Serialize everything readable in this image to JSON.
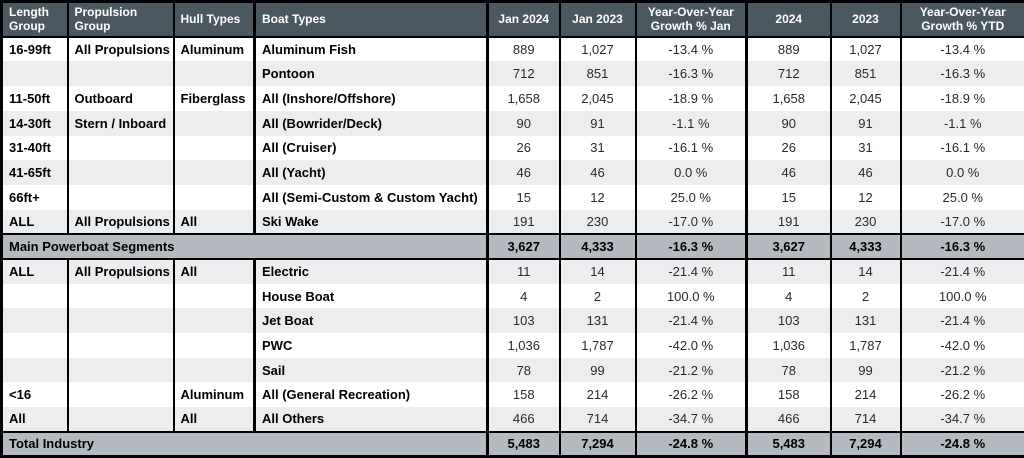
{
  "colors": {
    "header_bg": "#4b5860",
    "header_text": "#ffffff",
    "summary_row_bg": "#b4bac0",
    "stripe_gray": "#ebedee",
    "border": "#000000",
    "body_text": "#2a2a2a"
  },
  "header": {
    "cells": [
      {
        "label": "Length\nGroup",
        "align": "left"
      },
      {
        "label": "Propulsion\nGroup",
        "align": "left"
      },
      {
        "label": "Hull Types",
        "align": "left"
      },
      {
        "label": "Boat Types",
        "align": "left"
      },
      {
        "label": "Jan 2024",
        "align": "center"
      },
      {
        "label": "Jan 2023",
        "align": "center"
      },
      {
        "label": "Year-Over-Year\nGrowth % Jan",
        "align": "center"
      },
      {
        "label": "2024",
        "align": "center"
      },
      {
        "label": "2023",
        "align": "center"
      },
      {
        "label": "Year-Over-Year\nGrowth % YTD",
        "align": "center"
      }
    ]
  },
  "rows": [
    {
      "type": "data",
      "shade": "white",
      "cells": [
        "16-99ft",
        "All Propulsions",
        "Aluminum",
        "Aluminum Fish",
        "889",
        "1,027",
        "-13.4 %",
        "889",
        "1,027",
        "-13.4 %"
      ]
    },
    {
      "type": "data",
      "shade": "gray",
      "cells": [
        "",
        "",
        "",
        "Pontoon",
        "712",
        "851",
        "-16.3 %",
        "712",
        "851",
        "-16.3 %"
      ]
    },
    {
      "type": "data",
      "shade": "white",
      "cells": [
        "11-50ft",
        "Outboard",
        "Fiberglass",
        "All (Inshore/Offshore)",
        "1,658",
        "2,045",
        "-18.9 %",
        "1,658",
        "2,045",
        "-18.9 %"
      ]
    },
    {
      "type": "data",
      "shade": "gray",
      "cells": [
        "14-30ft",
        "Stern / Inboard",
        "",
        "All (Bowrider/Deck)",
        "90",
        "91",
        "-1.1 %",
        "90",
        "91",
        "-1.1 %"
      ]
    },
    {
      "type": "data",
      "shade": "white",
      "cells": [
        "31-40ft",
        "",
        "",
        "All (Cruiser)",
        "26",
        "31",
        "-16.1 %",
        "26",
        "31",
        "-16.1 %"
      ]
    },
    {
      "type": "data",
      "shade": "gray",
      "cells": [
        "41-65ft",
        "",
        "",
        "All (Yacht)",
        "46",
        "46",
        "0.0 %",
        "46",
        "46",
        "0.0 %"
      ]
    },
    {
      "type": "data",
      "shade": "white",
      "cells": [
        "66ft+",
        "",
        "",
        "All (Semi-Custom & Custom Yacht)",
        "15",
        "12",
        "25.0 %",
        "15",
        "12",
        "25.0 %"
      ]
    },
    {
      "type": "data",
      "shade": "gray",
      "cells": [
        "ALL",
        "All Propulsions",
        "All",
        "Ski Wake",
        "191",
        "230",
        "-17.0 %",
        "191",
        "230",
        "-17.0 %"
      ]
    },
    {
      "type": "summary",
      "cells": [
        "Main Powerboat Segments",
        "3,627",
        "4,333",
        "-16.3 %",
        "3,627",
        "4,333",
        "-16.3 %"
      ]
    },
    {
      "type": "data",
      "shade": "gray",
      "cells": [
        "ALL",
        "All Propulsions",
        "All",
        "Electric",
        "11",
        "14",
        "-21.4 %",
        "11",
        "14",
        "-21.4 %"
      ]
    },
    {
      "type": "data",
      "shade": "white",
      "cells": [
        "",
        "",
        "",
        "House Boat",
        "4",
        "2",
        "100.0 %",
        "4",
        "2",
        "100.0 %"
      ]
    },
    {
      "type": "data",
      "shade": "gray",
      "cells": [
        "",
        "",
        "",
        "Jet Boat",
        "103",
        "131",
        "-21.4 %",
        "103",
        "131",
        "-21.4 %"
      ]
    },
    {
      "type": "data",
      "shade": "white",
      "cells": [
        "",
        "",
        "",
        "PWC",
        "1,036",
        "1,787",
        "-42.0 %",
        "1,036",
        "1,787",
        "-42.0 %"
      ]
    },
    {
      "type": "data",
      "shade": "gray",
      "cells": [
        "",
        "",
        "",
        "Sail",
        "78",
        "99",
        "-21.2 %",
        "78",
        "99",
        "-21.2 %"
      ]
    },
    {
      "type": "data",
      "shade": "white",
      "cells": [
        "<16",
        "",
        "Aluminum",
        "All (General Recreation)",
        "158",
        "214",
        "-26.2 %",
        "158",
        "214",
        "-26.2 %"
      ]
    },
    {
      "type": "data",
      "shade": "gray",
      "cells": [
        "All",
        "",
        "All",
        "All Others",
        "466",
        "714",
        "-34.7 %",
        "466",
        "714",
        "-34.7 %"
      ]
    },
    {
      "type": "summary",
      "cells": [
        "Total Industry",
        "5,483",
        "7,294",
        "-24.8 %",
        "5,483",
        "7,294",
        "-24.8 %"
      ]
    }
  ],
  "chart_data": {
    "type": "table",
    "columns": [
      "Length Group",
      "Propulsion Group",
      "Hull Types",
      "Boat Types",
      "Jan 2024",
      "Jan 2023",
      "Year-Over-Year Growth % Jan",
      "2024",
      "2023",
      "Year-Over-Year Growth % YTD"
    ],
    "rows": [
      [
        "16-99ft",
        "All Propulsions",
        "Aluminum",
        "Aluminum Fish",
        889,
        1027,
        -13.4,
        889,
        1027,
        -13.4
      ],
      [
        "",
        "",
        "",
        "Pontoon",
        712,
        851,
        -16.3,
        712,
        851,
        -16.3
      ],
      [
        "11-50ft",
        "Outboard",
        "Fiberglass",
        "All (Inshore/Offshore)",
        1658,
        2045,
        -18.9,
        1658,
        2045,
        -18.9
      ],
      [
        "14-30ft",
        "Stern / Inboard",
        "",
        "All (Bowrider/Deck)",
        90,
        91,
        -1.1,
        90,
        91,
        -1.1
      ],
      [
        "31-40ft",
        "",
        "",
        "All (Cruiser)",
        26,
        31,
        -16.1,
        26,
        31,
        -16.1
      ],
      [
        "41-65ft",
        "",
        "",
        "All (Yacht)",
        46,
        46,
        0.0,
        46,
        46,
        0.0
      ],
      [
        "66ft+",
        "",
        "",
        "All (Semi-Custom & Custom Yacht)",
        15,
        12,
        25.0,
        15,
        12,
        25.0
      ],
      [
        "ALL",
        "All Propulsions",
        "All",
        "Ski Wake",
        191,
        230,
        -17.0,
        191,
        230,
        -17.0
      ],
      [
        "",
        "",
        "",
        "Main Powerboat Segments",
        3627,
        4333,
        -16.3,
        3627,
        4333,
        -16.3
      ],
      [
        "ALL",
        "All Propulsions",
        "All",
        "Electric",
        11,
        14,
        -21.4,
        11,
        14,
        -21.4
      ],
      [
        "",
        "",
        "",
        "House Boat",
        4,
        2,
        100.0,
        4,
        2,
        100.0
      ],
      [
        "",
        "",
        "",
        "Jet Boat",
        103,
        131,
        -21.4,
        103,
        131,
        -21.4
      ],
      [
        "",
        "",
        "",
        "PWC",
        1036,
        1787,
        -42.0,
        1036,
        1787,
        -42.0
      ],
      [
        "",
        "",
        "",
        "Sail",
        78,
        99,
        -21.2,
        78,
        99,
        -21.2
      ],
      [
        "<16",
        "",
        "Aluminum",
        "All (General Recreation)",
        158,
        214,
        -26.2,
        158,
        214,
        -26.2
      ],
      [
        "All",
        "",
        "All",
        "All Others",
        466,
        714,
        -34.7,
        466,
        714,
        -34.7
      ],
      [
        "",
        "",
        "",
        "Total Industry",
        5483,
        7294,
        -24.8,
        5483,
        7294,
        -24.8
      ]
    ],
    "units": "boat registrations (counts) and percent growth",
    "grid": true,
    "notes": "Summary rows: Main Powerboat Segments, Total Industry"
  }
}
